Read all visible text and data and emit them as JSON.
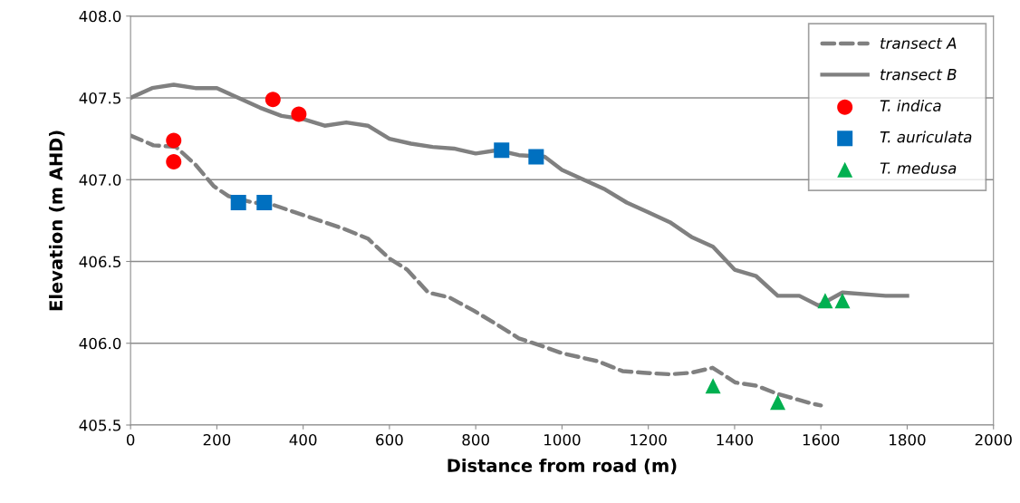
{
  "chart_data": {
    "type": "line",
    "xlabel": "Distance from road (m)",
    "ylabel": "Elevation (m AHD)",
    "xlim": [
      0,
      2000
    ],
    "xticks": [
      0,
      200,
      400,
      600,
      800,
      1000,
      1200,
      1400,
      1600,
      1800,
      2000
    ],
    "ylim": [
      405.5,
      408.0
    ],
    "yticks": [
      405.5,
      {
        "value": 406,
        "label": "406.0"
      },
      406.5,
      {
        "value": 407,
        "label": "407.0"
      },
      407.5,
      {
        "value": 408,
        "label": "408.0"
      }
    ],
    "grid": "y",
    "legend": "top right",
    "series": [
      {
        "name": "transect A",
        "line_style": "dashed",
        "marker": "none",
        "color": "#808080",
        "x": [
          0,
          53,
          105,
          151,
          193,
          227,
          284,
          326,
          382,
          438,
          494,
          550,
          599,
          641,
          690,
          739,
          795,
          852,
          900,
          957,
          999,
          1083,
          1140,
          1188,
          1251,
          1300,
          1349,
          1402,
          1451,
          1500,
          1581,
          1600
        ],
        "values": [
          407.27,
          407.21,
          407.2,
          407.09,
          406.96,
          406.9,
          406.86,
          406.85,
          406.8,
          406.75,
          406.7,
          406.64,
          406.52,
          406.45,
          406.31,
          406.28,
          406.2,
          406.11,
          406.03,
          405.98,
          405.94,
          405.89,
          405.83,
          405.82,
          405.81,
          405.82,
          405.85,
          405.76,
          405.74,
          405.69,
          405.63,
          405.62
        ]
      },
      {
        "name": "transect B",
        "line_style": "solid",
        "marker": "none",
        "color": "#808080",
        "x": [
          0,
          50,
          100,
          150,
          200,
          250,
          300,
          350,
          400,
          450,
          500,
          550,
          600,
          650,
          700,
          750,
          800,
          850,
          900,
          960,
          1000,
          1050,
          1100,
          1150,
          1200,
          1250,
          1300,
          1350,
          1400,
          1450,
          1500,
          1550,
          1595,
          1650,
          1750,
          1800
        ],
        "values": [
          407.5,
          407.56,
          407.58,
          407.56,
          407.56,
          407.5,
          407.44,
          407.39,
          407.37,
          407.33,
          407.35,
          407.33,
          407.25,
          407.22,
          407.2,
          407.19,
          407.16,
          407.18,
          407.15,
          407.14,
          407.06,
          407.0,
          406.94,
          406.86,
          406.8,
          406.74,
          406.65,
          406.59,
          406.45,
          406.41,
          406.29,
          406.29,
          406.23,
          406.31,
          406.29,
          406.29
        ]
      },
      {
        "name": "T. indica",
        "type": "scatter",
        "marker": "circle",
        "color": "#ff0000",
        "x": [
          100,
          100,
          330,
          390
        ],
        "values": [
          407.24,
          407.11,
          407.49,
          407.4
        ]
      },
      {
        "name": "T. auriculata",
        "type": "scatter",
        "marker": "square",
        "color": "#0070c0",
        "x": [
          250,
          310,
          860,
          940
        ],
        "values": [
          406.86,
          406.86,
          407.18,
          407.14
        ]
      },
      {
        "name": "T. medusa",
        "type": "scatter",
        "marker": "triangle",
        "color": "#00b050",
        "x": [
          1350,
          1500,
          1610,
          1650
        ],
        "values": [
          405.74,
          405.64,
          406.26,
          406.26
        ]
      }
    ]
  }
}
